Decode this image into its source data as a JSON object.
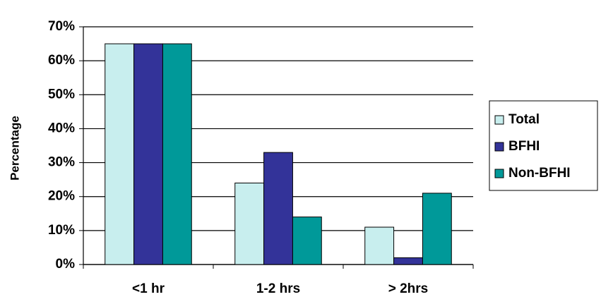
{
  "chart_data": {
    "type": "bar",
    "y_label": "Percentage",
    "categories": [
      "<1 hr",
      "1-2 hrs",
      "> 2hrs"
    ],
    "series": [
      {
        "name": "Total",
        "color": "#c8eeee",
        "values": [
          65,
          24,
          11
        ]
      },
      {
        "name": "BFHI",
        "color": "#333399",
        "values": [
          65,
          33,
          2
        ]
      },
      {
        "name": "Non-BFHI",
        "color": "#009999",
        "values": [
          65,
          14,
          21
        ]
      }
    ],
    "ylim": [
      0,
      70
    ],
    "yticks": [
      {
        "value": 0,
        "label": "0%"
      },
      {
        "value": 10,
        "label": "10%"
      },
      {
        "value": 20,
        "label": "20%"
      },
      {
        "value": 30,
        "label": "30%"
      },
      {
        "value": 40,
        "label": "40%"
      },
      {
        "value": 50,
        "label": "50%"
      },
      {
        "value": 60,
        "label": "60%"
      },
      {
        "value": 70,
        "label": "70%"
      }
    ],
    "grid": true,
    "legend": "right"
  }
}
